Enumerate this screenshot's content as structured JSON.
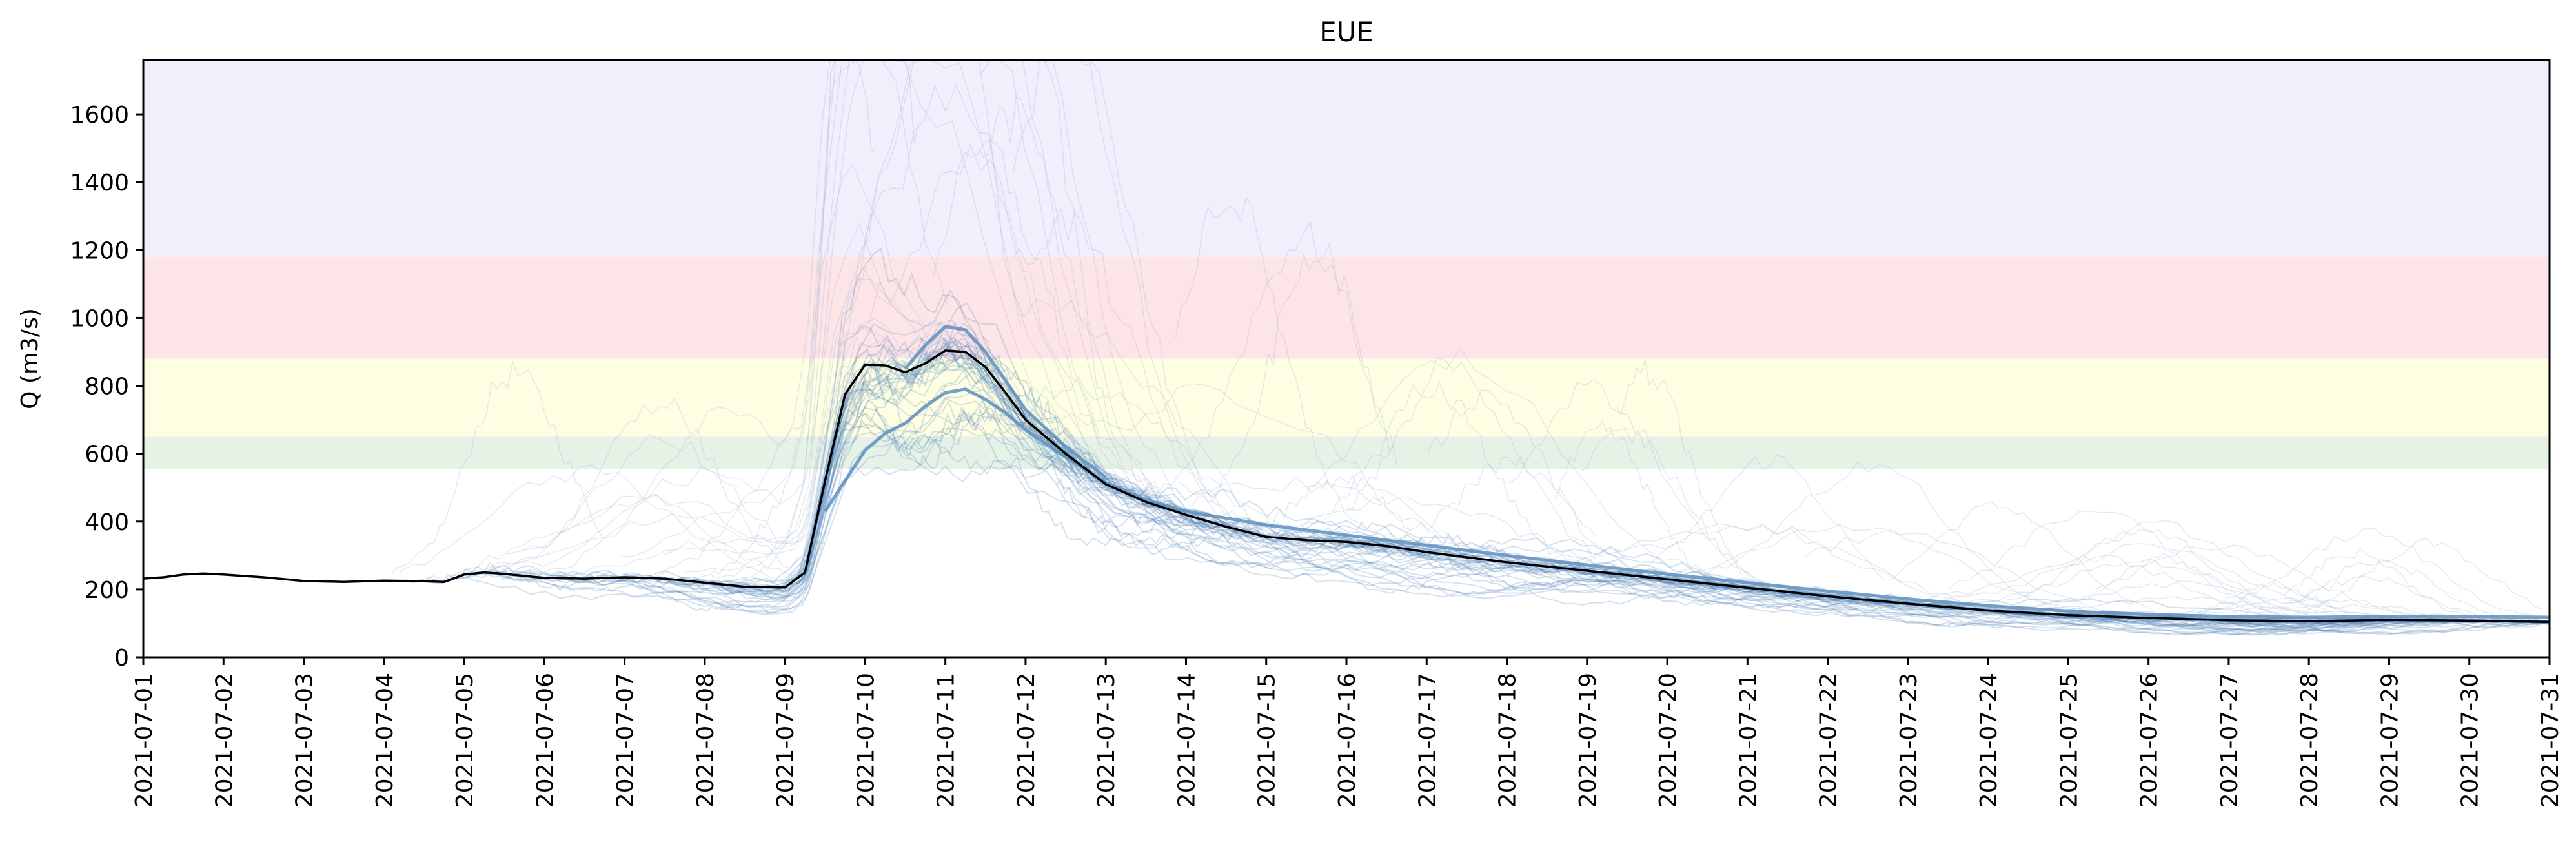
{
  "chart_data": {
    "type": "line",
    "title": "EUE",
    "xlabel": "",
    "ylabel": "Q (m3/s)",
    "x_type": "date",
    "xlim": [
      "2021-07-01",
      "2021-07-31"
    ],
    "ylim": [
      0,
      1760
    ],
    "yticks": [
      0,
      200,
      400,
      600,
      800,
      1000,
      1200,
      1400,
      1600
    ],
    "xticks": [
      "2021-07-01",
      "2021-07-02",
      "2021-07-03",
      "2021-07-04",
      "2021-07-05",
      "2021-07-06",
      "2021-07-07",
      "2021-07-08",
      "2021-07-09",
      "2021-07-10",
      "2021-07-11",
      "2021-07-12",
      "2021-07-13",
      "2021-07-14",
      "2021-07-15",
      "2021-07-16",
      "2021-07-17",
      "2021-07-18",
      "2021-07-19",
      "2021-07-20",
      "2021-07-21",
      "2021-07-22",
      "2021-07-23",
      "2021-07-24",
      "2021-07-25",
      "2021-07-26",
      "2021-07-27",
      "2021-07-28",
      "2021-07-29",
      "2021-07-30",
      "2021-07-31"
    ],
    "grid": false,
    "threshold_bands": [
      {
        "y0": 555,
        "y1": 650,
        "color": "#e6f2e6"
      },
      {
        "y0": 880,
        "y1": 1180,
        "color": "#fde4e7"
      },
      {
        "y0": 650,
        "y1": 880,
        "color": "#fefee3"
      },
      {
        "y0": 1180,
        "y1": 1760,
        "color": "#f2eefb"
      }
    ],
    "series": [
      {
        "role": "observed",
        "color": "#000000",
        "points": [
          [
            "2021-07-01T00:00",
            232
          ],
          [
            "2021-07-01T06:00",
            236
          ],
          [
            "2021-07-01T12:00",
            244
          ],
          [
            "2021-07-01T18:00",
            247
          ],
          [
            "2021-07-02T00:00",
            244
          ],
          [
            "2021-07-02T12:00",
            236
          ],
          [
            "2021-07-03T00:00",
            225
          ],
          [
            "2021-07-03T12:00",
            222
          ],
          [
            "2021-07-04T00:00",
            226
          ],
          [
            "2021-07-04T12:00",
            224
          ],
          [
            "2021-07-04T18:00",
            222
          ],
          [
            "2021-07-05T00:00",
            244
          ],
          [
            "2021-07-05T06:00",
            250
          ],
          [
            "2021-07-05T12:00",
            246
          ],
          [
            "2021-07-06T00:00",
            234
          ],
          [
            "2021-07-06T12:00",
            232
          ],
          [
            "2021-07-07T00:00",
            236
          ],
          [
            "2021-07-07T12:00",
            232
          ],
          [
            "2021-07-08T00:00",
            220
          ],
          [
            "2021-07-08T12:00",
            208
          ],
          [
            "2021-07-09T00:00",
            206
          ],
          [
            "2021-07-09T06:00",
            250
          ],
          [
            "2021-07-09T12:00",
            520
          ],
          [
            "2021-07-09T18:00",
            775
          ],
          [
            "2021-07-10T00:00",
            862
          ],
          [
            "2021-07-10T06:00",
            860
          ],
          [
            "2021-07-10T12:00",
            840
          ],
          [
            "2021-07-10T18:00",
            866
          ],
          [
            "2021-07-11T00:00",
            904
          ],
          [
            "2021-07-11T06:00",
            900
          ],
          [
            "2021-07-11T12:00",
            855
          ],
          [
            "2021-07-11T18:00",
            780
          ],
          [
            "2021-07-12T00:00",
            700
          ],
          [
            "2021-07-12T12:00",
            600
          ],
          [
            "2021-07-13T00:00",
            510
          ],
          [
            "2021-07-13T12:00",
            458
          ],
          [
            "2021-07-14T00:00",
            420
          ],
          [
            "2021-07-14T12:00",
            385
          ],
          [
            "2021-07-15T00:00",
            355
          ],
          [
            "2021-07-15T12:00",
            345
          ],
          [
            "2021-07-16T00:00",
            340
          ],
          [
            "2021-07-16T12:00",
            328
          ],
          [
            "2021-07-17T00:00",
            310
          ],
          [
            "2021-07-17T12:00",
            295
          ],
          [
            "2021-07-18T00:00",
            280
          ],
          [
            "2021-07-19T00:00",
            255
          ],
          [
            "2021-07-20T00:00",
            230
          ],
          [
            "2021-07-21T00:00",
            205
          ],
          [
            "2021-07-22T00:00",
            180
          ],
          [
            "2021-07-23T00:00",
            158
          ],
          [
            "2021-07-24T00:00",
            138
          ],
          [
            "2021-07-25T00:00",
            124
          ],
          [
            "2021-07-26T00:00",
            116
          ],
          [
            "2021-07-27T00:00",
            109
          ],
          [
            "2021-07-28T00:00",
            106
          ],
          [
            "2021-07-29T00:00",
            110
          ],
          [
            "2021-07-30T00:00",
            108
          ],
          [
            "2021-07-31T00:00",
            104
          ]
        ]
      },
      {
        "role": "forecast-ensemble-main",
        "color": "#5d8fc0",
        "points": [
          [
            "2021-07-09T12:00",
            430
          ],
          [
            "2021-07-09T18:00",
            520
          ],
          [
            "2021-07-10T00:00",
            610
          ],
          [
            "2021-07-10T06:00",
            660
          ],
          [
            "2021-07-10T12:00",
            690
          ],
          [
            "2021-07-10T18:00",
            740
          ],
          [
            "2021-07-11T00:00",
            780
          ],
          [
            "2021-07-11T06:00",
            790
          ],
          [
            "2021-07-11T12:00",
            760
          ],
          [
            "2021-07-11T18:00",
            720
          ],
          [
            "2021-07-12T00:00",
            670
          ],
          [
            "2021-07-12T12:00",
            590
          ],
          [
            "2021-07-13T00:00",
            515
          ],
          [
            "2021-07-13T12:00",
            465
          ],
          [
            "2021-07-14T00:00",
            430
          ],
          [
            "2021-07-15T00:00",
            390
          ],
          [
            "2021-07-16T00:00",
            360
          ],
          [
            "2021-07-17T00:00",
            330
          ],
          [
            "2021-07-18T00:00",
            300
          ],
          [
            "2021-07-19T00:00",
            272
          ],
          [
            "2021-07-20T00:00",
            245
          ],
          [
            "2021-07-21T00:00",
            220
          ],
          [
            "2021-07-22T00:00",
            195
          ],
          [
            "2021-07-23T00:00",
            172
          ],
          [
            "2021-07-24T00:00",
            152
          ],
          [
            "2021-07-25T00:00",
            136
          ],
          [
            "2021-07-26T00:00",
            126
          ],
          [
            "2021-07-27T00:00",
            120
          ],
          [
            "2021-07-28T00:00",
            118
          ],
          [
            "2021-07-29T00:00",
            120
          ],
          [
            "2021-07-30T00:00",
            120
          ],
          [
            "2021-07-31T00:00",
            118
          ]
        ]
      },
      {
        "role": "forecast-ensemble-upper",
        "color": "#5d8fc0",
        "points": [
          [
            "2021-07-10T12:00",
            850
          ],
          [
            "2021-07-10T18:00",
            920
          ],
          [
            "2021-07-11T00:00",
            975
          ],
          [
            "2021-07-11T06:00",
            965
          ],
          [
            "2021-07-11T12:00",
            900
          ],
          [
            "2021-07-12T00:00",
            730
          ],
          [
            "2021-07-12T12:00",
            620
          ],
          [
            "2021-07-13T00:00",
            530
          ]
        ]
      }
    ]
  }
}
